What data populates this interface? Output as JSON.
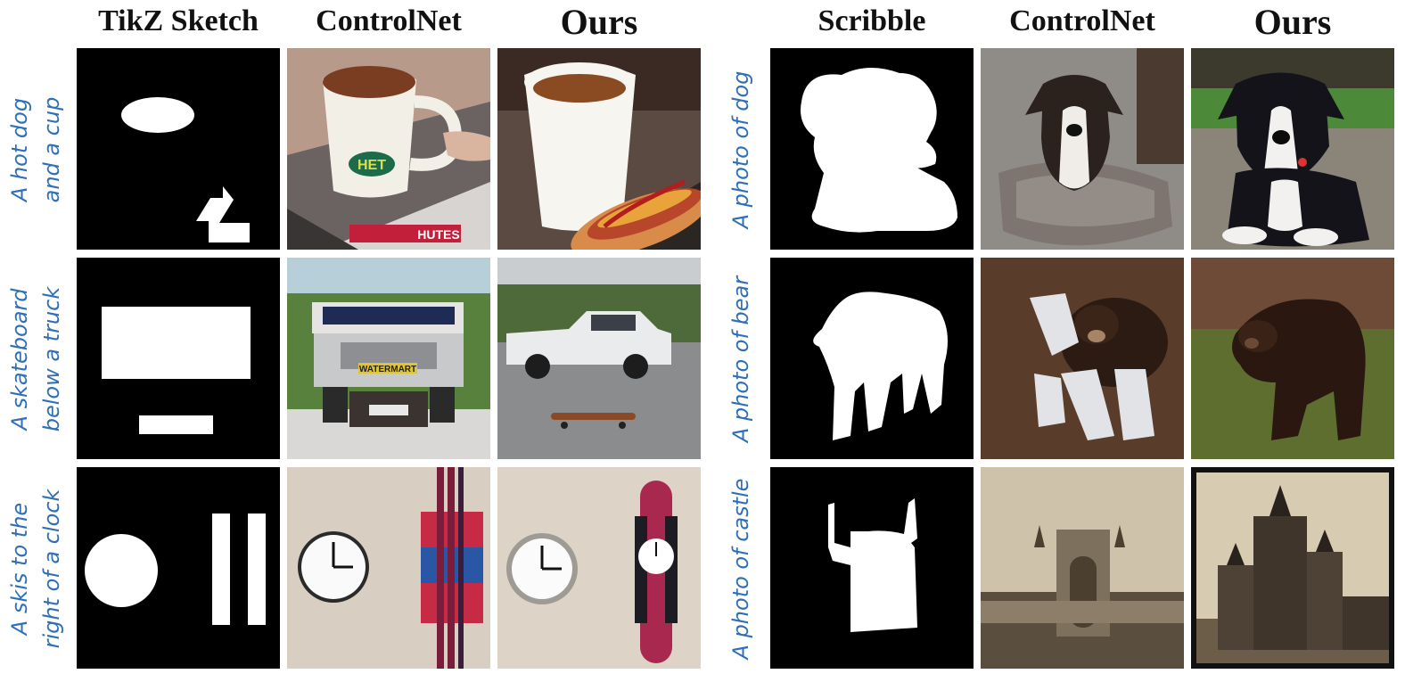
{
  "headers": {
    "tikz_sketch": "TikZ Sketch",
    "controlnet_left": "ControlNet",
    "ours_left": "Ours",
    "scribble": "Scribble",
    "controlnet_right": "ControlNet",
    "ours_right": "Ours"
  },
  "left_prompts": [
    {
      "line1": "A hot dog",
      "line2": "and a cup"
    },
    {
      "line1": "A skateboard",
      "line2": "below a truck"
    },
    {
      "line1": "A skis to the",
      "line2": "right of a clock"
    }
  ],
  "right_prompts": [
    {
      "text": "A photo of dog"
    },
    {
      "text": "A photo of bear"
    },
    {
      "text": "A photo of castle"
    }
  ],
  "image_labels": {
    "cup_logo": "HET",
    "cup_packet": "HUTES",
    "truck_plate": "WATERMART"
  },
  "colors": {
    "prompt_text": "#2f6fb8",
    "header_text": "#111111",
    "sketch_bg": "#000000",
    "sketch_fg": "#ffffff"
  }
}
